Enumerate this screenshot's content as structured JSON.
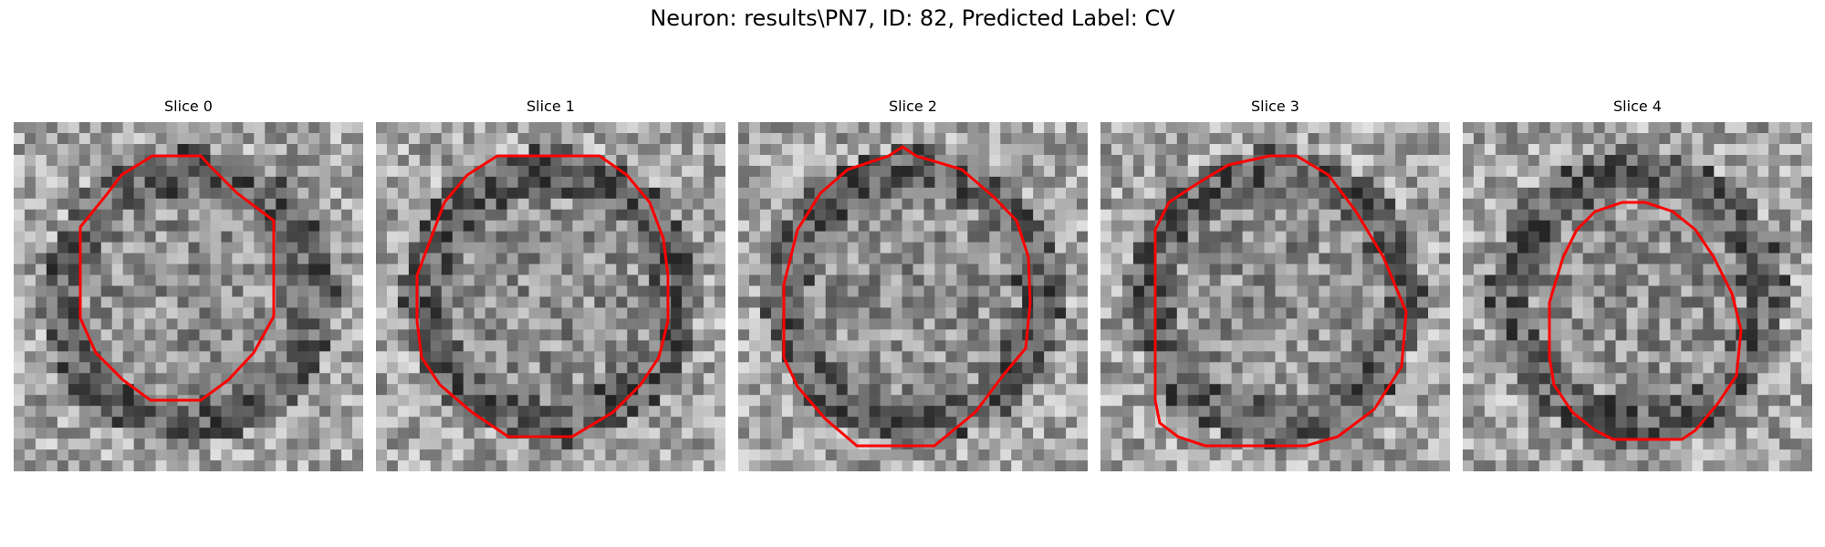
{
  "figure": {
    "title": "Neuron: results\\PN7, ID: 82, Predicted Label: CV"
  },
  "panels": [
    {
      "title": "Slice 0",
      "seed": 11,
      "outline_color": "#ff0000",
      "outline_shape": "small-octagon-left"
    },
    {
      "title": "Slice 1",
      "seed": 23,
      "outline_color": "#ff0000",
      "outline_shape": "large-decagon"
    },
    {
      "title": "Slice 2",
      "seed": 37,
      "outline_color": "#ff0000",
      "outline_shape": "large-decagon"
    },
    {
      "title": "Slice 3",
      "seed": 51,
      "outline_color": "#ff0000",
      "outline_shape": "large-decagon"
    },
    {
      "title": "Slice 4",
      "seed": 67,
      "outline_color": "#ff0000",
      "outline_shape": "small-octagon-right"
    }
  ]
}
